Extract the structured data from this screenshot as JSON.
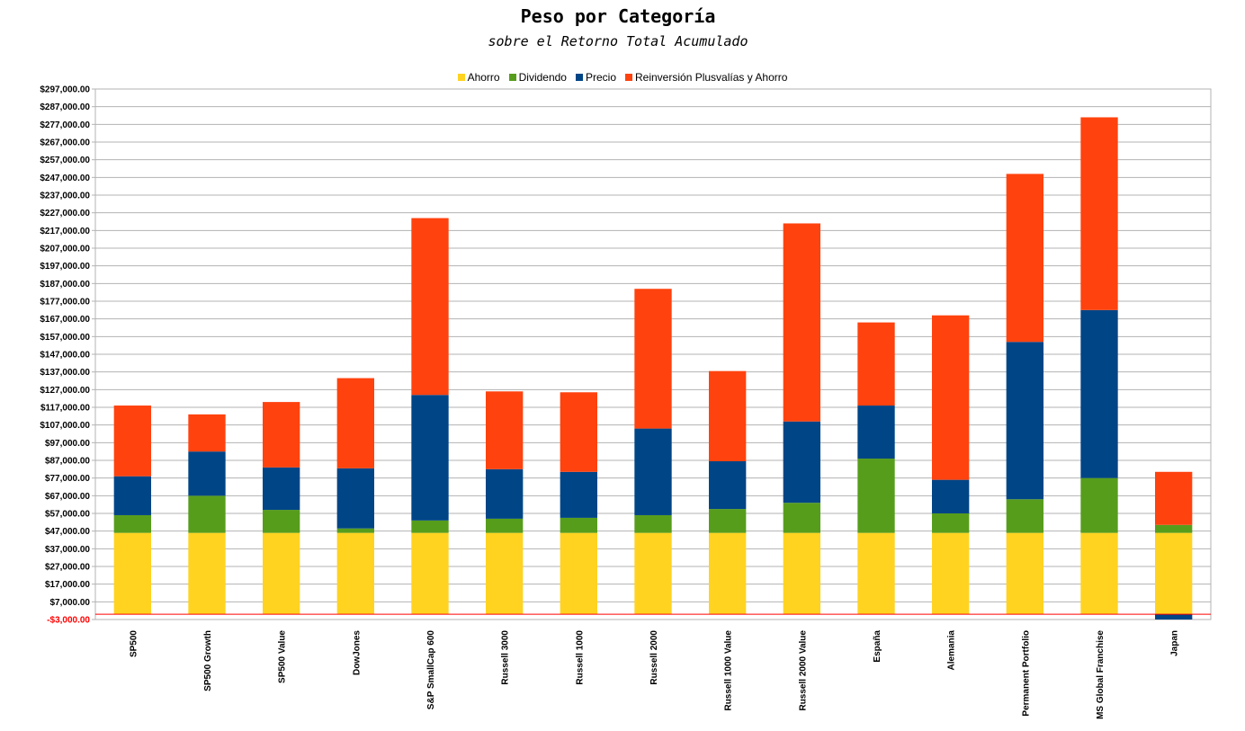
{
  "chart_data": {
    "type": "bar",
    "stacked": true,
    "title": "Peso por Categoría",
    "subtitle": "sobre el Retorno Total Acumulado",
    "legend_position": "top",
    "grid": true,
    "ylim": [
      -3000,
      297000
    ],
    "y_ticks": [
      -3000,
      7000,
      17000,
      27000,
      37000,
      47000,
      57000,
      67000,
      77000,
      87000,
      97000,
      107000,
      117000,
      127000,
      137000,
      147000,
      157000,
      167000,
      177000,
      187000,
      197000,
      207000,
      217000,
      227000,
      237000,
      247000,
      257000,
      267000,
      277000,
      287000,
      297000
    ],
    "y_tick_labels": [
      "-$3,000.00",
      "$7,000.00",
      "$17,000.00",
      "$27,000.00",
      "$37,000.00",
      "$47,000.00",
      "$57,000.00",
      "$67,000.00",
      "$77,000.00",
      "$87,000.00",
      "$97,000.00",
      "$107,000.00",
      "$117,000.00",
      "$127,000.00",
      "$137,000.00",
      "$147,000.00",
      "$157,000.00",
      "$167,000.00",
      "$177,000.00",
      "$187,000.00",
      "$197,000.00",
      "$207,000.00",
      "$217,000.00",
      "$227,000.00",
      "$237,000.00",
      "$247,000.00",
      "$257,000.00",
      "$267,000.00",
      "$277,000.00",
      "$287,000.00",
      "$297,000.00"
    ],
    "categories": [
      "SP500",
      "SP500 Growth",
      "SP500 Value",
      "DowJones",
      "S&P SmallCap 600",
      "Russell 3000",
      "Russell 1000",
      "Russell 2000",
      "Russell 1000 Value",
      "Russell 2000 Value",
      "España",
      "Alemania",
      "Permanent Portfolio",
      "MS Global Franchise",
      "Japan"
    ],
    "series": [
      {
        "name": "Ahorro",
        "color": "#ffd320",
        "values": [
          46000,
          46000,
          46000,
          46000,
          46000,
          46000,
          46000,
          46000,
          46000,
          46000,
          46000,
          46000,
          46000,
          46000,
          46000
        ]
      },
      {
        "name": "Dividendo",
        "color": "#579d1c",
        "values": [
          10000,
          21000,
          13000,
          2500,
          7000,
          8000,
          8500,
          10000,
          13500,
          17000,
          42000,
          11000,
          19000,
          31000,
          4500
        ]
      },
      {
        "name": "Precio",
        "color": "#004586",
        "values": [
          22000,
          25000,
          24000,
          34000,
          71000,
          28000,
          26000,
          49000,
          27000,
          46000,
          30000,
          19000,
          89000,
          95000,
          -3000
        ]
      },
      {
        "name": "Reinversión Plusvalías y Ahorro",
        "color": "#ff420e",
        "values": [
          40000,
          21000,
          37000,
          51000,
          100000,
          44000,
          45000,
          79000,
          51000,
          112000,
          47000,
          93000,
          95000,
          109000,
          30000
        ]
      }
    ],
    "zero_line_color": "#ff0000"
  }
}
